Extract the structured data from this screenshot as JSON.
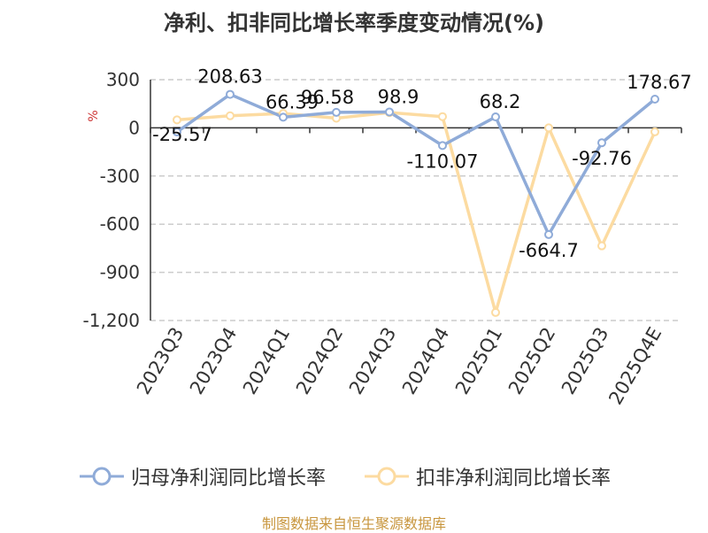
{
  "chart_data": {
    "type": "line",
    "title": "净利、扣非同比增长率季度变动情况(%)",
    "ylabel": "%",
    "ylim": [
      -1200,
      300
    ],
    "yticks": [
      300,
      0,
      -300,
      -600,
      -900,
      -1200
    ],
    "ytick_labels": [
      "300",
      "0",
      "-300",
      "-600",
      "-900",
      "-1,200"
    ],
    "categories": [
      "2023Q3",
      "2023Q4",
      "2024Q1",
      "2024Q2",
      "2024Q3",
      "2024Q4",
      "2025Q1",
      "2025Q2",
      "2025Q3",
      "2025Q4E"
    ],
    "grid": "horizontal dashed",
    "legend_position": "bottom",
    "series": [
      {
        "name": "归母净利润同比增长率",
        "color": "#8fabd8",
        "values": [
          -25.57,
          208.63,
          66.39,
          96.58,
          98.9,
          -110.07,
          68.2,
          -664.7,
          -92.76,
          178.67
        ],
        "data_labels": [
          "-25.57",
          "208.63",
          "66.39",
          "96.58",
          "98.9",
          "-110.07",
          "68.2",
          "-664.7",
          "-92.76",
          "178.67"
        ]
      },
      {
        "name": "扣非净利润同比增长率",
        "color": "#fcdba1",
        "values": [
          50,
          75,
          90,
          60,
          95,
          70,
          -1150,
          0,
          -735,
          -25
        ],
        "data_labels": []
      }
    ]
  },
  "source": "制图数据来自恒生聚源数据库"
}
